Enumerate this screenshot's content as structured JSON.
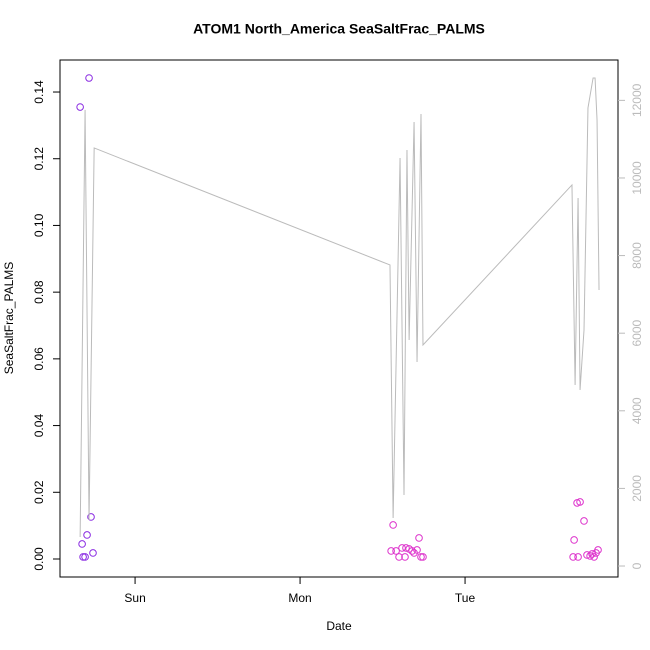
{
  "chart_data": {
    "type": "scatter",
    "title": "ATOM1 North_America SeaSaltFrac_PALMS",
    "xlabel": "Date",
    "ylabel": "SeaSaltFrac_PALMS",
    "xlim": [
      0.545,
      3.927
    ],
    "xticks": [
      {
        "value": 1,
        "label": "Sun"
      },
      {
        "value": 2,
        "label": "Mon"
      },
      {
        "value": 3,
        "label": "Tue"
      }
    ],
    "ylim": [
      -0.0054,
      0.1496
    ],
    "yticks": [
      {
        "value": 0,
        "label": "0.00"
      },
      0.02,
      0.04,
      0.06,
      0.08,
      {
        "value": 0.1,
        "label": "0.10"
      },
      0.12,
      0.14
    ],
    "y2lim": [
      -283,
      13040
    ],
    "y2ticks": [
      0,
      2000,
      4000,
      6000,
      8000,
      10000,
      12000
    ],
    "series": [
      {
        "color": "#8a2be2",
        "x": [
          0.667,
          0.679,
          0.685,
          0.697,
          0.709,
          0.721,
          0.733,
          0.745
        ],
        "values": [
          0.1355,
          0.0045,
          0.0006,
          0.0006,
          0.0072,
          0.1442,
          0.0126,
          0.0018
        ]
      },
      {
        "color": "#dd33cc",
        "x": [
          2.552,
          2.564,
          2.582,
          2.6,
          2.618,
          2.636,
          2.642,
          2.661,
          2.679,
          2.691,
          2.709,
          2.721,
          2.733,
          2.745,
          3.655,
          3.661,
          3.679,
          3.685,
          3.697,
          3.721,
          3.739,
          3.758,
          3.77,
          3.782,
          3.794,
          3.806
        ],
        "values": [
          0.0024,
          0.0102,
          0.0024,
          0.0006,
          0.0033,
          0.0006,
          0.0033,
          0.003,
          0.0024,
          0.0018,
          0.0027,
          0.0063,
          0.0006,
          0.0006,
          0.0006,
          0.0057,
          0.0168,
          0.0006,
          0.0171,
          0.0114,
          0.0012,
          0.0009,
          0.0015,
          0.0006,
          0.0018,
          0.0027
        ]
      },
      {
        "type": "line",
        "axis": "y2",
        "color": "#bbbbbb",
        "x": [
          0.667,
          0.697,
          0.721,
          0.752,
          2.545,
          2.564,
          2.606,
          2.63,
          2.648,
          2.661,
          2.691,
          2.709,
          2.733,
          2.745,
          3.648,
          3.667,
          3.685,
          3.697,
          3.721,
          3.745,
          3.776,
          3.788,
          3.8,
          3.812
        ],
        "values": [
          747,
          11753,
          1186,
          10773,
          7758,
          1237,
          10515,
          1830,
          10722,
          5825,
          11443,
          5258,
          11649,
          5696,
          9820,
          4665,
          9485,
          4536,
          6082,
          11804,
          12577,
          12577,
          11495,
          7113
        ]
      }
    ]
  }
}
